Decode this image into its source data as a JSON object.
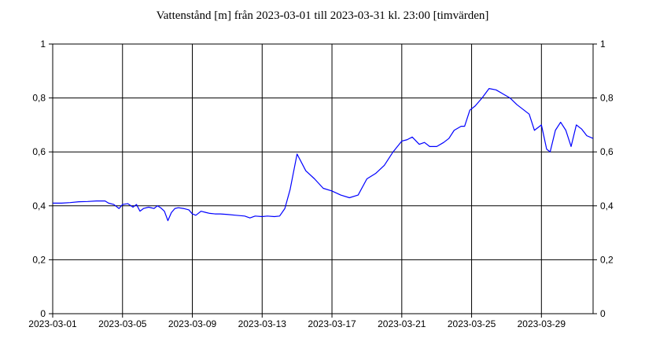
{
  "chart_data": {
    "type": "line",
    "title": "Vattenstånd [m] från 2023-03-01 till 2023-03-31 kl. 23:00 [timvärden]",
    "xlabel": "",
    "ylabel": "",
    "xlim": [
      0,
      30.96
    ],
    "ylim": [
      0,
      1
    ],
    "x_ticks": [
      {
        "x": 0,
        "label": "2023-03-01"
      },
      {
        "x": 4,
        "label": "2023-03-05"
      },
      {
        "x": 8,
        "label": "2023-03-09"
      },
      {
        "x": 12,
        "label": "2023-03-13"
      },
      {
        "x": 16,
        "label": "2023-03-17"
      },
      {
        "x": 20,
        "label": "2023-03-21"
      },
      {
        "x": 24,
        "label": "2023-03-25"
      },
      {
        "x": 28,
        "label": "2023-03-29"
      }
    ],
    "y_ticks": [
      {
        "y": 0,
        "label": "0"
      },
      {
        "y": 0.2,
        "label": "0,2"
      },
      {
        "y": 0.4,
        "label": "0,4"
      },
      {
        "y": 0.6,
        "label": "0,6"
      },
      {
        "y": 0.8,
        "label": "0,8"
      },
      {
        "y": 1,
        "label": "1"
      }
    ],
    "grid": true,
    "line_color": "#0000ff",
    "series": [
      {
        "x": [
          0,
          0.5,
          1,
          1.5,
          2,
          2.5,
          3,
          3.2,
          3.5,
          3.8,
          4,
          4.3,
          4.6,
          4.8,
          5,
          5.2,
          5.5,
          5.8,
          6,
          6.2,
          6.4,
          6.6,
          6.8,
          7,
          7.2,
          7.5,
          7.8,
          8,
          8.2,
          8.5,
          8.8,
          9,
          9.3,
          9.6,
          10,
          10.5,
          11,
          11.3,
          11.6,
          12,
          12.3,
          12.7,
          13,
          13.3,
          13.6,
          14,
          14.5,
          15,
          15.5,
          16,
          16.5,
          17,
          17.5,
          18,
          18.5,
          19,
          19.5,
          20,
          20.3,
          20.6,
          21,
          21.3,
          21.6,
          22,
          22.4,
          22.7,
          23,
          23.4,
          23.6,
          23.9,
          24.2,
          24.6,
          25,
          25.4,
          25.8,
          26.2,
          26.6,
          26.9,
          27.3,
          27.6,
          28,
          28.3,
          28.5,
          28.8,
          29.1,
          29.4,
          29.7,
          30,
          30.3,
          30.6,
          30.96
        ],
        "y": [
          0.41,
          0.41,
          0.412,
          0.415,
          0.416,
          0.418,
          0.418,
          0.41,
          0.405,
          0.39,
          0.405,
          0.408,
          0.395,
          0.405,
          0.38,
          0.39,
          0.395,
          0.39,
          0.4,
          0.392,
          0.38,
          0.345,
          0.375,
          0.39,
          0.393,
          0.39,
          0.385,
          0.37,
          0.365,
          0.38,
          0.375,
          0.372,
          0.37,
          0.37,
          0.368,
          0.365,
          0.362,
          0.355,
          0.362,
          0.36,
          0.362,
          0.36,
          0.362,
          0.39,
          0.46,
          0.592,
          0.53,
          0.5,
          0.465,
          0.455,
          0.44,
          0.43,
          0.44,
          0.5,
          0.52,
          0.55,
          0.6,
          0.64,
          0.645,
          0.655,
          0.628,
          0.635,
          0.62,
          0.62,
          0.635,
          0.65,
          0.68,
          0.695,
          0.695,
          0.755,
          0.77,
          0.8,
          0.835,
          0.83,
          0.815,
          0.8,
          0.775,
          0.76,
          0.74,
          0.68,
          0.7,
          0.61,
          0.6,
          0.68,
          0.71,
          0.68,
          0.62,
          0.7,
          0.685,
          0.66,
          0.65
        ]
      }
    ]
  }
}
